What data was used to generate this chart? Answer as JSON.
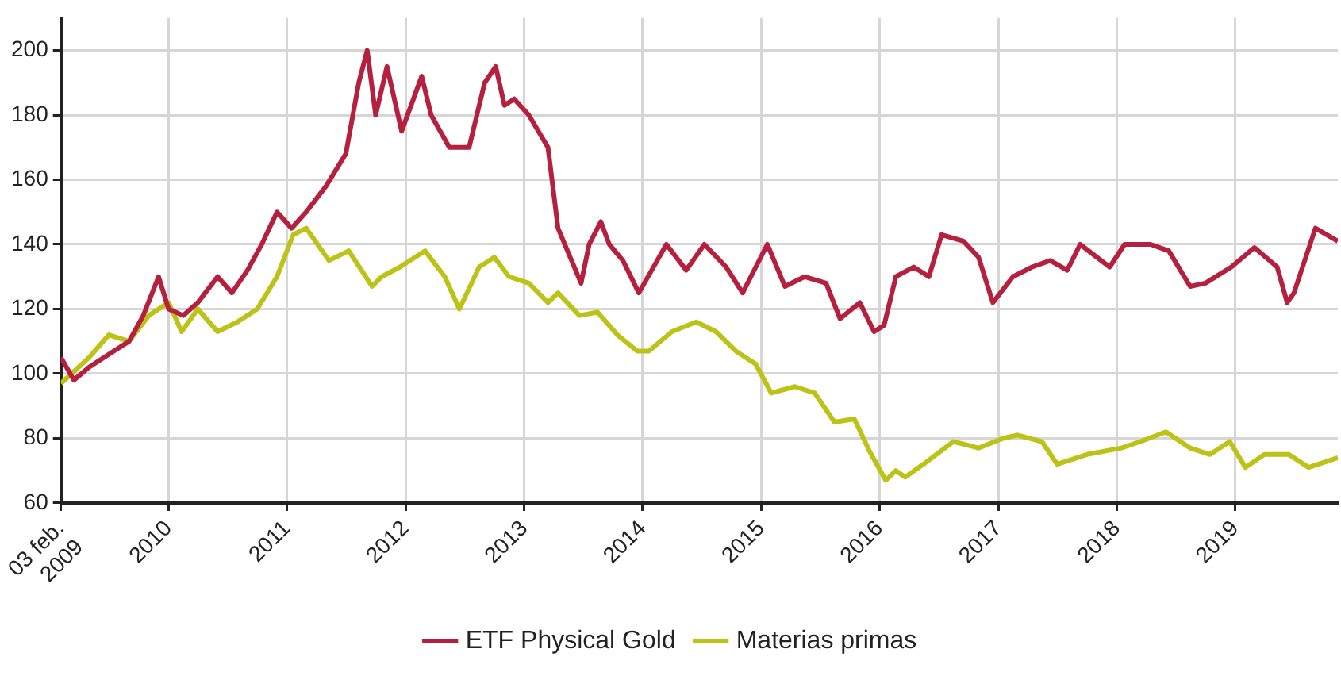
{
  "chart_data": {
    "type": "line",
    "ylim": [
      60,
      210
    ],
    "yticks": [
      60,
      80,
      100,
      120,
      140,
      160,
      180,
      200
    ],
    "xlim": [
      "2009-02-03",
      "2019-11-13"
    ],
    "xticks": [
      {
        "value": "2009-02-03",
        "label": "03 feb.\n2009"
      },
      {
        "value": "2010-01-01",
        "label": "2010"
      },
      {
        "value": "2011-01-01",
        "label": "2011"
      },
      {
        "value": "2012-01-01",
        "label": "2012"
      },
      {
        "value": "2013-01-01",
        "label": "2013"
      },
      {
        "value": "2014-01-01",
        "label": "2014"
      },
      {
        "value": "2015-01-01",
        "label": "2015"
      },
      {
        "value": "2016-01-01",
        "label": "2016"
      },
      {
        "value": "2017-01-01",
        "label": "2017"
      },
      {
        "value": "2018-01-01",
        "label": "2018"
      },
      {
        "value": "2019-01-01",
        "label": "2019"
      }
    ],
    "grid": true,
    "legend": "bottom",
    "marker": "none",
    "line_style": "solid",
    "series": [
      {
        "name": "ETF Physical Gold",
        "color": "#b5203f",
        "x": [
          "2009-02-03",
          "2009-03-15",
          "2009-05-01",
          "2009-07-01",
          "2009-09-01",
          "2009-10-15",
          "2009-12-01",
          "2010-01-01",
          "2010-02-15",
          "2010-04-01",
          "2010-06-01",
          "2010-07-15",
          "2010-09-01",
          "2010-10-15",
          "2010-12-01",
          "2011-01-15",
          "2011-03-01",
          "2011-05-01",
          "2011-07-01",
          "2011-08-10",
          "2011-09-05",
          "2011-10-01",
          "2011-11-05",
          "2011-12-20",
          "2012-02-20",
          "2012-03-20",
          "2012-05-15",
          "2012-07-15",
          "2012-09-01",
          "2012-10-05",
          "2012-11-01",
          "2012-12-01",
          "2013-01-15",
          "2013-03-15",
          "2013-04-15",
          "2013-06-25",
          "2013-07-20",
          "2013-08-25",
          "2013-09-20",
          "2013-11-01",
          "2013-12-20",
          "2014-03-15",
          "2014-05-15",
          "2014-07-10",
          "2014-09-15",
          "2014-11-05",
          "2015-01-20",
          "2015-03-15",
          "2015-05-15",
          "2015-07-20",
          "2015-09-01",
          "2015-11-01",
          "2015-12-15",
          "2016-01-15",
          "2016-02-20",
          "2016-04-15",
          "2016-06-01",
          "2016-07-10",
          "2016-09-15",
          "2016-11-01",
          "2016-12-15",
          "2017-02-15",
          "2017-04-15",
          "2017-06-10",
          "2017-08-01",
          "2017-09-10",
          "2017-12-10",
          "2018-01-25",
          "2018-04-15",
          "2018-06-10",
          "2018-08-15",
          "2018-10-01",
          "2018-12-20",
          "2019-03-01",
          "2019-05-10",
          "2019-06-10",
          "2019-07-01",
          "2019-09-05",
          "2019-11-13"
        ],
        "values": [
          105,
          98,
          102,
          106,
          110,
          118,
          130,
          120,
          118,
          122,
          130,
          125,
          132,
          140,
          150,
          145,
          150,
          158,
          168,
          190,
          200,
          180,
          195,
          175,
          192,
          180,
          170,
          170,
          190,
          195,
          183,
          185,
          180,
          170,
          145,
          128,
          140,
          147,
          140,
          135,
          125,
          140,
          132,
          140,
          133,
          125,
          140,
          127,
          130,
          128,
          117,
          122,
          113,
          115,
          130,
          133,
          130,
          143,
          141,
          136,
          122,
          130,
          133,
          135,
          132,
          140,
          133,
          140,
          140,
          138,
          127,
          128,
          133,
          139,
          133,
          122,
          125,
          145,
          141
        ]
      },
      {
        "name": "Materias primas",
        "color": "#bcc316",
        "x": [
          "2009-02-03",
          "2009-05-01",
          "2009-07-01",
          "2009-09-01",
          "2009-11-01",
          "2010-01-01",
          "2010-02-10",
          "2010-04-01",
          "2010-06-01",
          "2010-08-01",
          "2010-10-01",
          "2010-12-01",
          "2011-01-20",
          "2011-03-01",
          "2011-05-10",
          "2011-07-10",
          "2011-09-20",
          "2011-10-20",
          "2011-12-15",
          "2012-03-01",
          "2012-05-01",
          "2012-06-15",
          "2012-08-15",
          "2012-10-01",
          "2012-11-15",
          "2013-01-15",
          "2013-03-15",
          "2013-04-15",
          "2013-06-20",
          "2013-08-15",
          "2013-10-15",
          "2013-12-15",
          "2014-01-20",
          "2014-04-01",
          "2014-06-15",
          "2014-08-15",
          "2014-10-15",
          "2014-12-15",
          "2015-02-01",
          "2015-04-15",
          "2015-06-15",
          "2015-08-15",
          "2015-10-15",
          "2015-12-01",
          "2016-01-20",
          "2016-02-20",
          "2016-03-20",
          "2016-05-15",
          "2016-08-15",
          "2016-11-01",
          "2017-01-15",
          "2017-03-01",
          "2017-05-15",
          "2017-07-01",
          "2017-10-01",
          "2018-01-15",
          "2018-03-15",
          "2018-06-01",
          "2018-08-15",
          "2018-10-15",
          "2018-12-15",
          "2019-02-01",
          "2019-04-01",
          "2019-06-15",
          "2019-08-15",
          "2019-10-15",
          "2019-11-13"
        ],
        "values": [
          97,
          105,
          112,
          110,
          118,
          122,
          113,
          120,
          113,
          116,
          120,
          130,
          143,
          145,
          135,
          138,
          127,
          130,
          133,
          138,
          130,
          120,
          133,
          136,
          130,
          128,
          122,
          125,
          118,
          119,
          112,
          107,
          107,
          113,
          116,
          113,
          107,
          103,
          94,
          96,
          94,
          85,
          86,
          76,
          67,
          70,
          68,
          72,
          79,
          77,
          80,
          81,
          79,
          72,
          75,
          77,
          79,
          82,
          77,
          75,
          79,
          71,
          75,
          75,
          71,
          73,
          74
        ]
      }
    ]
  }
}
